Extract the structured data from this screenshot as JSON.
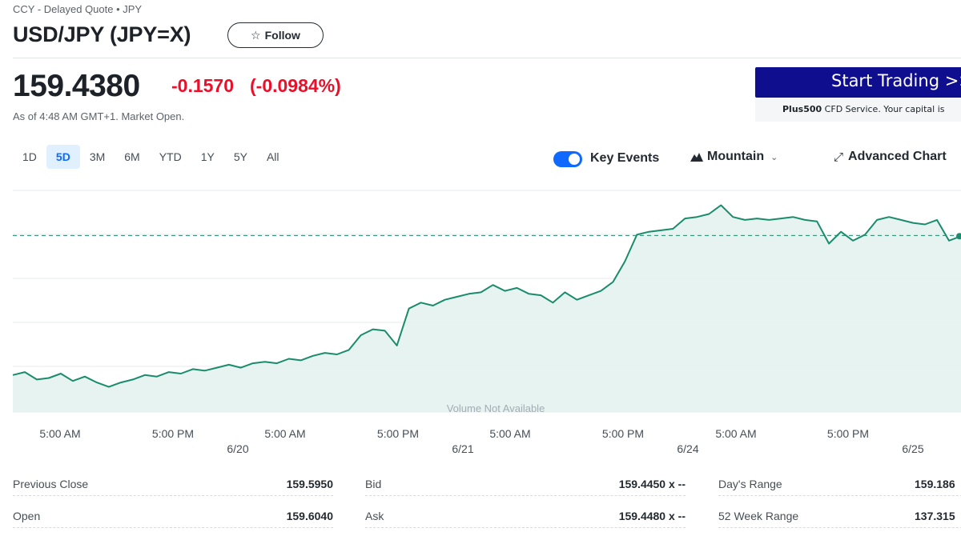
{
  "header": {
    "subtitle": "CCY - Delayed Quote • JPY",
    "title": "USD/JPY (JPY=X)",
    "follow_label": "Follow"
  },
  "quote": {
    "price": "159.4380",
    "change": "-0.1570",
    "change_pct": "(-0.0984%)",
    "as_of": "As of 4:48 AM GMT+1. Market Open.",
    "change_color": "#eb0f29"
  },
  "ad": {
    "button_label": "Start Trading >>",
    "brand": "Plus500",
    "disclaimer": " CFD Service. Your capital is",
    "button_color": "#0e0e8f"
  },
  "chart_controls": {
    "ranges": [
      "1D",
      "5D",
      "3M",
      "6M",
      "YTD",
      "1Y",
      "5Y",
      "All"
    ],
    "active_range": "5D",
    "key_events_label": "Key Events",
    "key_events_on": true,
    "chart_type_label": "Mountain",
    "advanced_label": "Advanced Chart"
  },
  "chart_data": {
    "type": "area",
    "line_color": "#1a8b6c",
    "fill_color": "#e3f2ee",
    "previous_close": 159.595,
    "baseline_style": "dashed",
    "y_range": [
      158.4,
      159.9
    ],
    "grid": true,
    "volume_note": "Volume Not Available",
    "time_labels": [
      "5:00 AM",
      "5:00 PM",
      "5:00 AM",
      "5:00 PM",
      "5:00 AM",
      "5:00 PM",
      "5:00 AM",
      "5:00 PM"
    ],
    "date_labels": [
      "6/20",
      "6/21",
      "6/24",
      "6/25"
    ],
    "series": [
      {
        "x": [
          0,
          1,
          2,
          3,
          4,
          5,
          6,
          7,
          8,
          9,
          10,
          11,
          12,
          13,
          14,
          15,
          16,
          17,
          18,
          19,
          20,
          21,
          22,
          23,
          24,
          25,
          26,
          27,
          28,
          29,
          30,
          31,
          32,
          33,
          34,
          35,
          36,
          37,
          38,
          39,
          40,
          41,
          42,
          43,
          44,
          45,
          46,
          47,
          48,
          49,
          50,
          51,
          52,
          53,
          54,
          55,
          56,
          57,
          58,
          59,
          60,
          61,
          62,
          63,
          64,
          65,
          66,
          67,
          68,
          69,
          70,
          71,
          72,
          73,
          74,
          75,
          76,
          77,
          78,
          79
        ],
        "values": [
          158.65,
          158.67,
          158.62,
          158.63,
          158.66,
          158.61,
          158.64,
          158.6,
          158.57,
          158.6,
          158.62,
          158.65,
          158.64,
          158.67,
          158.66,
          158.69,
          158.68,
          158.7,
          158.72,
          158.7,
          158.73,
          158.74,
          158.73,
          158.76,
          158.75,
          158.78,
          158.8,
          158.79,
          158.82,
          158.92,
          158.96,
          158.95,
          158.85,
          159.1,
          159.14,
          159.12,
          159.16,
          159.18,
          159.2,
          159.21,
          159.26,
          159.22,
          159.24,
          159.2,
          159.19,
          159.14,
          159.21,
          159.16,
          159.19,
          159.22,
          159.28,
          159.42,
          159.6,
          159.62,
          159.63,
          159.64,
          159.71,
          159.72,
          159.74,
          159.8,
          159.72,
          159.7,
          159.71,
          159.7,
          159.71,
          159.72,
          159.7,
          159.69,
          159.54,
          159.62,
          159.56,
          159.6,
          159.7,
          159.72,
          159.7,
          159.68,
          159.67,
          159.7,
          159.56,
          159.59
        ]
      }
    ]
  },
  "stats": {
    "rows": [
      [
        {
          "label": "Previous Close",
          "value": "159.5950"
        },
        {
          "label": "Bid",
          "value": "159.4450 x --"
        },
        {
          "label": "Day's Range",
          "value": "159.186"
        }
      ],
      [
        {
          "label": "Open",
          "value": "159.6040"
        },
        {
          "label": "Ask",
          "value": "159.4480 x --"
        },
        {
          "label": "52 Week Range",
          "value": "137.315"
        }
      ]
    ]
  }
}
